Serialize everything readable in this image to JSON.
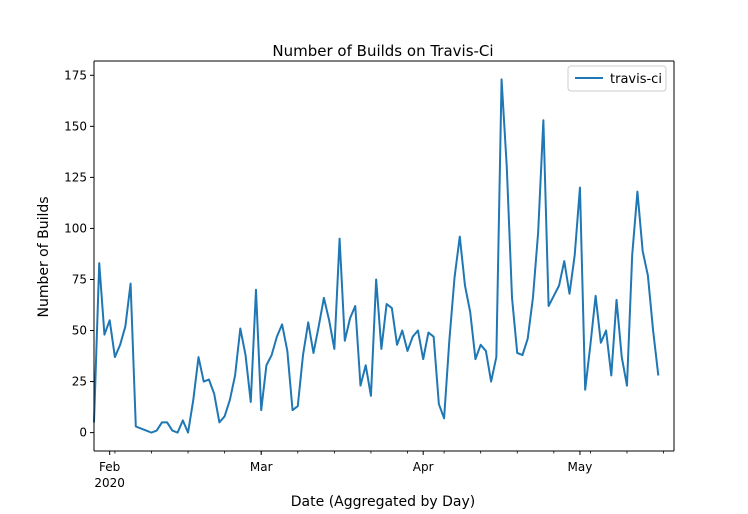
{
  "colors": {
    "series": "#1f77b4",
    "axis": "#000000",
    "background": "#ffffff",
    "legend_border": "#cccccc"
  },
  "chart_data": {
    "type": "line",
    "title": "Number of Builds on Travis-Ci",
    "xlabel": "Date (Aggregated by Day)",
    "ylabel": "Number of Builds",
    "ylim": [
      -9,
      182
    ],
    "xlim": [
      "2020-01-29",
      "2020-05-19"
    ],
    "grid": false,
    "legend_position": "upper right",
    "y_ticks": [
      0,
      25,
      50,
      75,
      100,
      125,
      150,
      175
    ],
    "x_ticks": [
      {
        "date": "2020-02-01",
        "label": "Feb",
        "sublabel": "2020"
      },
      {
        "date": "2020-03-01",
        "label": "Mar",
        "sublabel": ""
      },
      {
        "date": "2020-04-01",
        "label": "Apr",
        "sublabel": ""
      },
      {
        "date": "2020-05-01",
        "label": "May",
        "sublabel": ""
      }
    ],
    "series": [
      {
        "name": "travis-ci",
        "points": [
          [
            "2020-01-29",
            5
          ],
          [
            "2020-01-30",
            83
          ],
          [
            "2020-01-31",
            48
          ],
          [
            "2020-02-01",
            55
          ],
          [
            "2020-02-02",
            37
          ],
          [
            "2020-02-03",
            43
          ],
          [
            "2020-02-04",
            52
          ],
          [
            "2020-02-05",
            73
          ],
          [
            "2020-02-06",
            3
          ],
          [
            "2020-02-07",
            2
          ],
          [
            "2020-02-08",
            1
          ],
          [
            "2020-02-09",
            0
          ],
          [
            "2020-02-10",
            1
          ],
          [
            "2020-02-11",
            5
          ],
          [
            "2020-02-12",
            5
          ],
          [
            "2020-02-13",
            1
          ],
          [
            "2020-02-14",
            0
          ],
          [
            "2020-02-15",
            6
          ],
          [
            "2020-02-16",
            0
          ],
          [
            "2020-02-17",
            16
          ],
          [
            "2020-02-18",
            37
          ],
          [
            "2020-02-19",
            25
          ],
          [
            "2020-02-20",
            26
          ],
          [
            "2020-02-21",
            19
          ],
          [
            "2020-02-22",
            5
          ],
          [
            "2020-02-23",
            8
          ],
          [
            "2020-02-24",
            16
          ],
          [
            "2020-02-25",
            28
          ],
          [
            "2020-02-26",
            51
          ],
          [
            "2020-02-27",
            38
          ],
          [
            "2020-02-28",
            15
          ],
          [
            "2020-02-29",
            70
          ],
          [
            "2020-03-01",
            11
          ],
          [
            "2020-03-02",
            33
          ],
          [
            "2020-03-03",
            38
          ],
          [
            "2020-03-04",
            47
          ],
          [
            "2020-03-05",
            53
          ],
          [
            "2020-03-06",
            40
          ],
          [
            "2020-03-07",
            11
          ],
          [
            "2020-03-08",
            13
          ],
          [
            "2020-03-09",
            38
          ],
          [
            "2020-03-10",
            54
          ],
          [
            "2020-03-11",
            39
          ],
          [
            "2020-03-12",
            52
          ],
          [
            "2020-03-13",
            66
          ],
          [
            "2020-03-14",
            55
          ],
          [
            "2020-03-15",
            41
          ],
          [
            "2020-03-16",
            95
          ],
          [
            "2020-03-17",
            45
          ],
          [
            "2020-03-18",
            56
          ],
          [
            "2020-03-19",
            62
          ],
          [
            "2020-03-20",
            23
          ],
          [
            "2020-03-21",
            33
          ],
          [
            "2020-03-22",
            18
          ],
          [
            "2020-03-23",
            75
          ],
          [
            "2020-03-24",
            41
          ],
          [
            "2020-03-25",
            63
          ],
          [
            "2020-03-26",
            61
          ],
          [
            "2020-03-27",
            43
          ],
          [
            "2020-03-28",
            50
          ],
          [
            "2020-03-29",
            40
          ],
          [
            "2020-03-30",
            47
          ],
          [
            "2020-03-31",
            50
          ],
          [
            "2020-04-01",
            36
          ],
          [
            "2020-04-02",
            49
          ],
          [
            "2020-04-03",
            47
          ],
          [
            "2020-04-04",
            14
          ],
          [
            "2020-04-05",
            7
          ],
          [
            "2020-04-06",
            45
          ],
          [
            "2020-04-07",
            76
          ],
          [
            "2020-04-08",
            96
          ],
          [
            "2020-04-09",
            72
          ],
          [
            "2020-04-10",
            59
          ],
          [
            "2020-04-11",
            36
          ],
          [
            "2020-04-12",
            43
          ],
          [
            "2020-04-13",
            40
          ],
          [
            "2020-04-14",
            25
          ],
          [
            "2020-04-15",
            37
          ],
          [
            "2020-04-16",
            173
          ],
          [
            "2020-04-17",
            130
          ],
          [
            "2020-04-18",
            66
          ],
          [
            "2020-04-19",
            39
          ],
          [
            "2020-04-20",
            38
          ],
          [
            "2020-04-21",
            46
          ],
          [
            "2020-04-22",
            66
          ],
          [
            "2020-04-23",
            98
          ],
          [
            "2020-04-24",
            153
          ],
          [
            "2020-04-25",
            62
          ],
          [
            "2020-04-26",
            67
          ],
          [
            "2020-04-27",
            72
          ],
          [
            "2020-04-28",
            84
          ],
          [
            "2020-04-29",
            68
          ],
          [
            "2020-04-30",
            87
          ],
          [
            "2020-05-01",
            120
          ],
          [
            "2020-05-02",
            21
          ],
          [
            "2020-05-03",
            43
          ],
          [
            "2020-05-04",
            67
          ],
          [
            "2020-05-05",
            44
          ],
          [
            "2020-05-06",
            50
          ],
          [
            "2020-05-07",
            28
          ],
          [
            "2020-05-08",
            65
          ],
          [
            "2020-05-09",
            37
          ],
          [
            "2020-05-10",
            23
          ],
          [
            "2020-05-11",
            87
          ],
          [
            "2020-05-12",
            118
          ],
          [
            "2020-05-13",
            89
          ],
          [
            "2020-05-14",
            77
          ],
          [
            "2020-05-15",
            50
          ],
          [
            "2020-05-16",
            28
          ]
        ]
      }
    ]
  }
}
